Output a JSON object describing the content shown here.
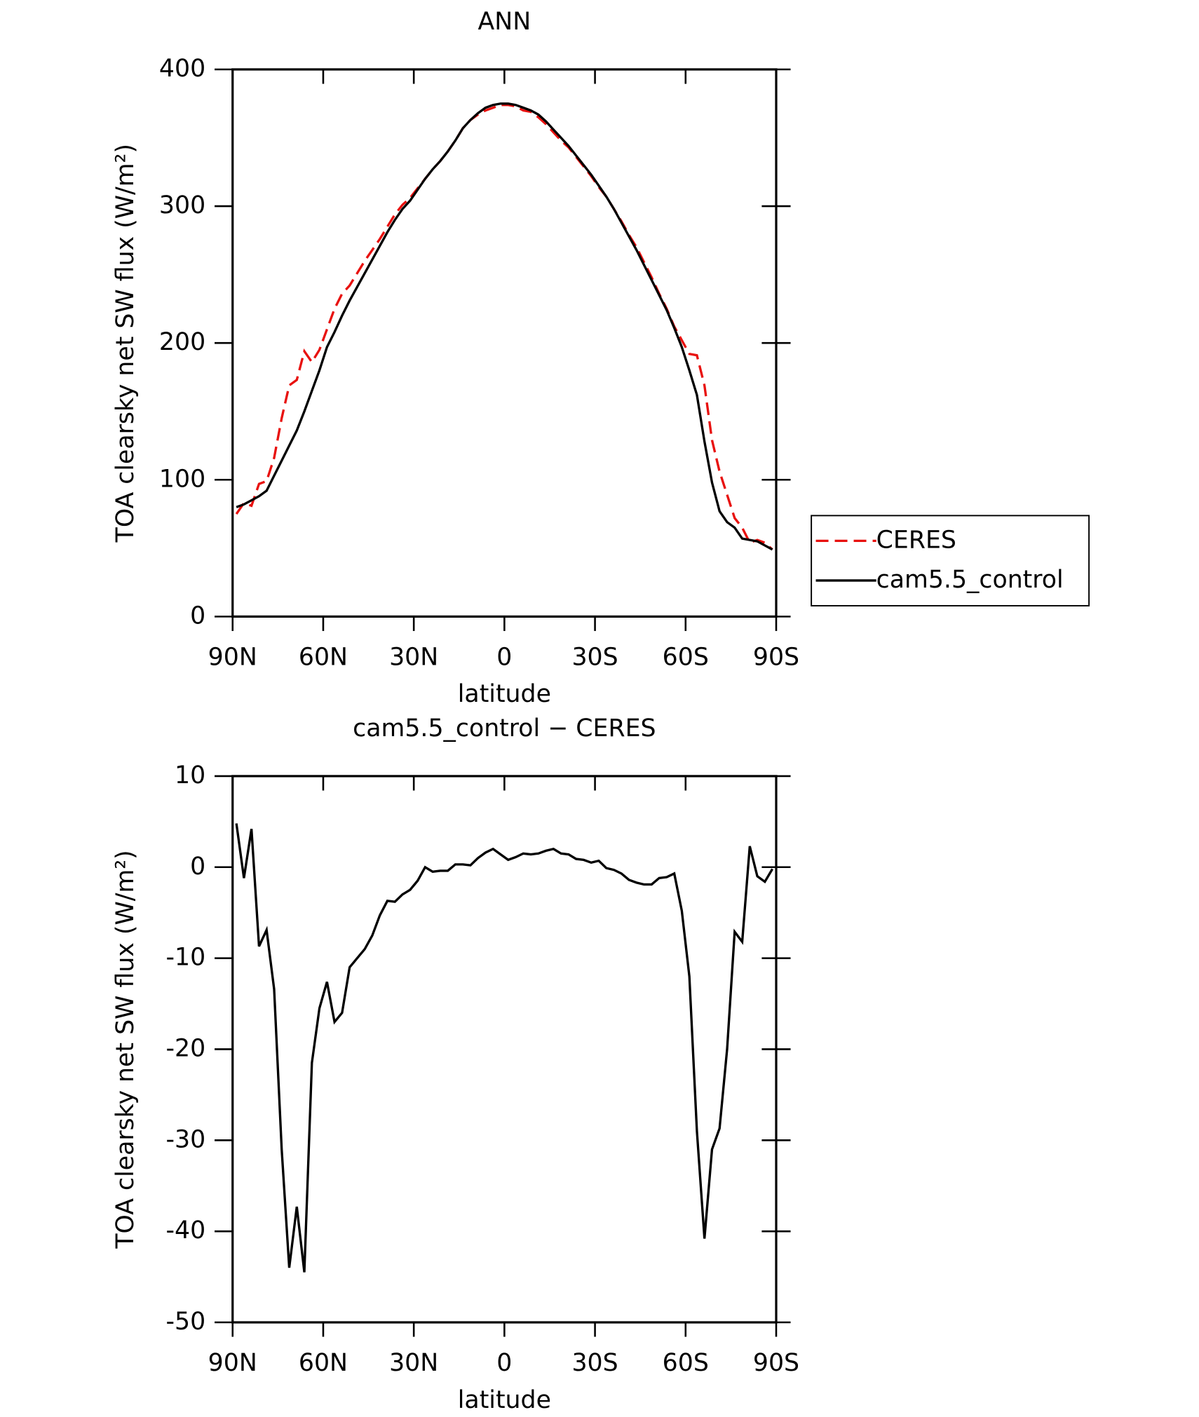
{
  "chart_data": [
    {
      "type": "line",
      "title": "ANN",
      "xlabel": "latitude",
      "ylabel": "TOA clearsky net SW flux (W/m²)",
      "x": [
        88.75,
        86.25,
        83.75,
        81.25,
        78.75,
        76.25,
        73.75,
        71.25,
        68.75,
        66.25,
        63.75,
        61.25,
        58.75,
        56.25,
        53.75,
        51.25,
        48.75,
        46.25,
        43.75,
        41.25,
        38.75,
        36.25,
        33.75,
        31.25,
        28.75,
        26.25,
        23.75,
        21.25,
        18.75,
        16.25,
        13.75,
        11.25,
        8.75,
        6.25,
        3.75,
        1.25,
        -1.25,
        -3.75,
        -6.25,
        -8.75,
        -11.25,
        -13.75,
        -16.25,
        -18.75,
        -21.25,
        -23.75,
        -26.25,
        -28.75,
        -31.25,
        -33.75,
        -36.25,
        -38.75,
        -41.25,
        -43.75,
        -46.25,
        -48.75,
        -51.25,
        -53.75,
        -56.25,
        -58.75,
        -61.25,
        -63.75,
        -66.25,
        -68.75,
        -71.25,
        -73.75,
        -76.25,
        -78.75,
        -81.25,
        -83.75,
        -86.25,
        -88.75
      ],
      "series": [
        {
          "name": "CERES",
          "color": "#e8110f",
          "dash": "dashed",
          "values": [
            75,
            83,
            81,
            97,
            99,
            116,
            145,
            169,
            173,
            194,
            186,
            195,
            210,
            225,
            236,
            242,
            251,
            260,
            268,
            276,
            285,
            294,
            301,
            306,
            313,
            320,
            327,
            333,
            340,
            348,
            357,
            363,
            367,
            370,
            372,
            374,
            374,
            373,
            370,
            369,
            365,
            360,
            354,
            348,
            343,
            336,
            329,
            322,
            314,
            307,
            298,
            289,
            279,
            270,
            259,
            248,
            236,
            225,
            212,
            202,
            192,
            191,
            169,
            129,
            106,
            89,
            72,
            65,
            54,
            56,
            54,
            49
          ]
        },
        {
          "name": "cam5.5_control",
          "color": "#000000",
          "dash": "solid",
          "values": [
            80,
            82,
            85,
            88,
            92,
            103,
            114,
            125,
            136,
            150,
            165,
            180,
            197,
            208,
            220,
            231,
            241,
            251,
            261,
            271,
            281,
            290,
            298,
            304,
            312,
            320,
            327,
            333,
            340,
            348,
            357,
            363,
            368,
            372,
            374,
            375,
            375,
            374,
            372,
            370,
            367,
            362,
            356,
            350,
            344,
            337,
            330,
            323,
            315,
            307,
            298,
            288,
            278,
            268,
            257,
            246,
            235,
            224,
            211,
            197,
            180,
            162,
            128,
            98,
            77,
            69,
            65,
            57,
            56,
            55,
            52,
            49
          ]
        }
      ],
      "xlim": [
        90,
        -90
      ],
      "xticks": [
        {
          "value": 90,
          "label": "90N"
        },
        {
          "value": 60,
          "label": "60N"
        },
        {
          "value": 30,
          "label": "30N"
        },
        0,
        {
          "value": -30,
          "label": "30S"
        },
        {
          "value": -60,
          "label": "60S"
        },
        {
          "value": -90,
          "label": "90S"
        }
      ],
      "ylim": [
        0,
        400
      ],
      "yticks": [
        0,
        100,
        200,
        300,
        400
      ],
      "legend": "outside-right"
    },
    {
      "type": "line",
      "title": "cam5.5_control − CERES",
      "xlabel": "latitude",
      "ylabel": "TOA clearsky net SW flux (W/m²)",
      "x": [
        88.75,
        86.25,
        83.75,
        81.25,
        78.75,
        76.25,
        73.75,
        71.25,
        68.75,
        66.25,
        63.75,
        61.25,
        58.75,
        56.25,
        53.75,
        51.25,
        48.75,
        46.25,
        43.75,
        41.25,
        38.75,
        36.25,
        33.75,
        31.25,
        28.75,
        26.25,
        23.75,
        21.25,
        18.75,
        16.25,
        13.75,
        11.25,
        8.75,
        6.25,
        3.75,
        1.25,
        -1.25,
        -3.75,
        -6.25,
        -8.75,
        -11.25,
        -13.75,
        -16.25,
        -18.75,
        -21.25,
        -23.75,
        -26.25,
        -28.75,
        -31.25,
        -33.75,
        -36.25,
        -38.75,
        -41.25,
        -43.75,
        -46.25,
        -48.75,
        -51.25,
        -53.75,
        -56.25,
        -58.75,
        -61.25,
        -63.75,
        -66.25,
        -68.75,
        -71.25,
        -73.75,
        -76.25,
        -78.75,
        -81.25,
        -83.75,
        -86.25,
        -88.75
      ],
      "series": [
        {
          "color": "#000000",
          "dash": "solid",
          "values": [
            4.8,
            -1.2,
            4.2,
            -8.7,
            -6.9,
            -13.4,
            -31,
            -44,
            -37.3,
            -44.5,
            -21.5,
            -15.5,
            -12.6,
            -17,
            -16,
            -11,
            -10,
            -9,
            -7.5,
            -5.3,
            -3.7,
            -3.8,
            -3,
            -2.5,
            -1.5,
            0,
            -0.5,
            -0.4,
            -0.4,
            0.3,
            0.3,
            0.2,
            1.0,
            1.6,
            2.0,
            1.4,
            0.8,
            1.1,
            1.5,
            1.4,
            1.5,
            1.8,
            2.0,
            1.5,
            1.4,
            0.9,
            0.8,
            0.5,
            0.7,
            -0.1,
            -0.3,
            -0.7,
            -1.4,
            -1.7,
            -1.9,
            -1.9,
            -1.2,
            -1.1,
            -0.7,
            -4.8,
            -12,
            -29,
            -40.8,
            -31,
            -28.7,
            -20,
            -7.1,
            -8.2,
            2.3,
            -1,
            -1.6,
            -0.2
          ]
        }
      ],
      "xlim": [
        90,
        -90
      ],
      "xticks": [
        {
          "value": 90,
          "label": "90N"
        },
        {
          "value": 60,
          "label": "60N"
        },
        {
          "value": 30,
          "label": "30N"
        },
        0,
        {
          "value": -30,
          "label": "30S"
        },
        {
          "value": -60,
          "label": "60S"
        },
        {
          "value": -90,
          "label": "90S"
        }
      ],
      "ylim": [
        -50,
        10
      ],
      "yticks": [
        -50,
        -40,
        -30,
        -20,
        -10,
        0,
        10
      ]
    }
  ]
}
